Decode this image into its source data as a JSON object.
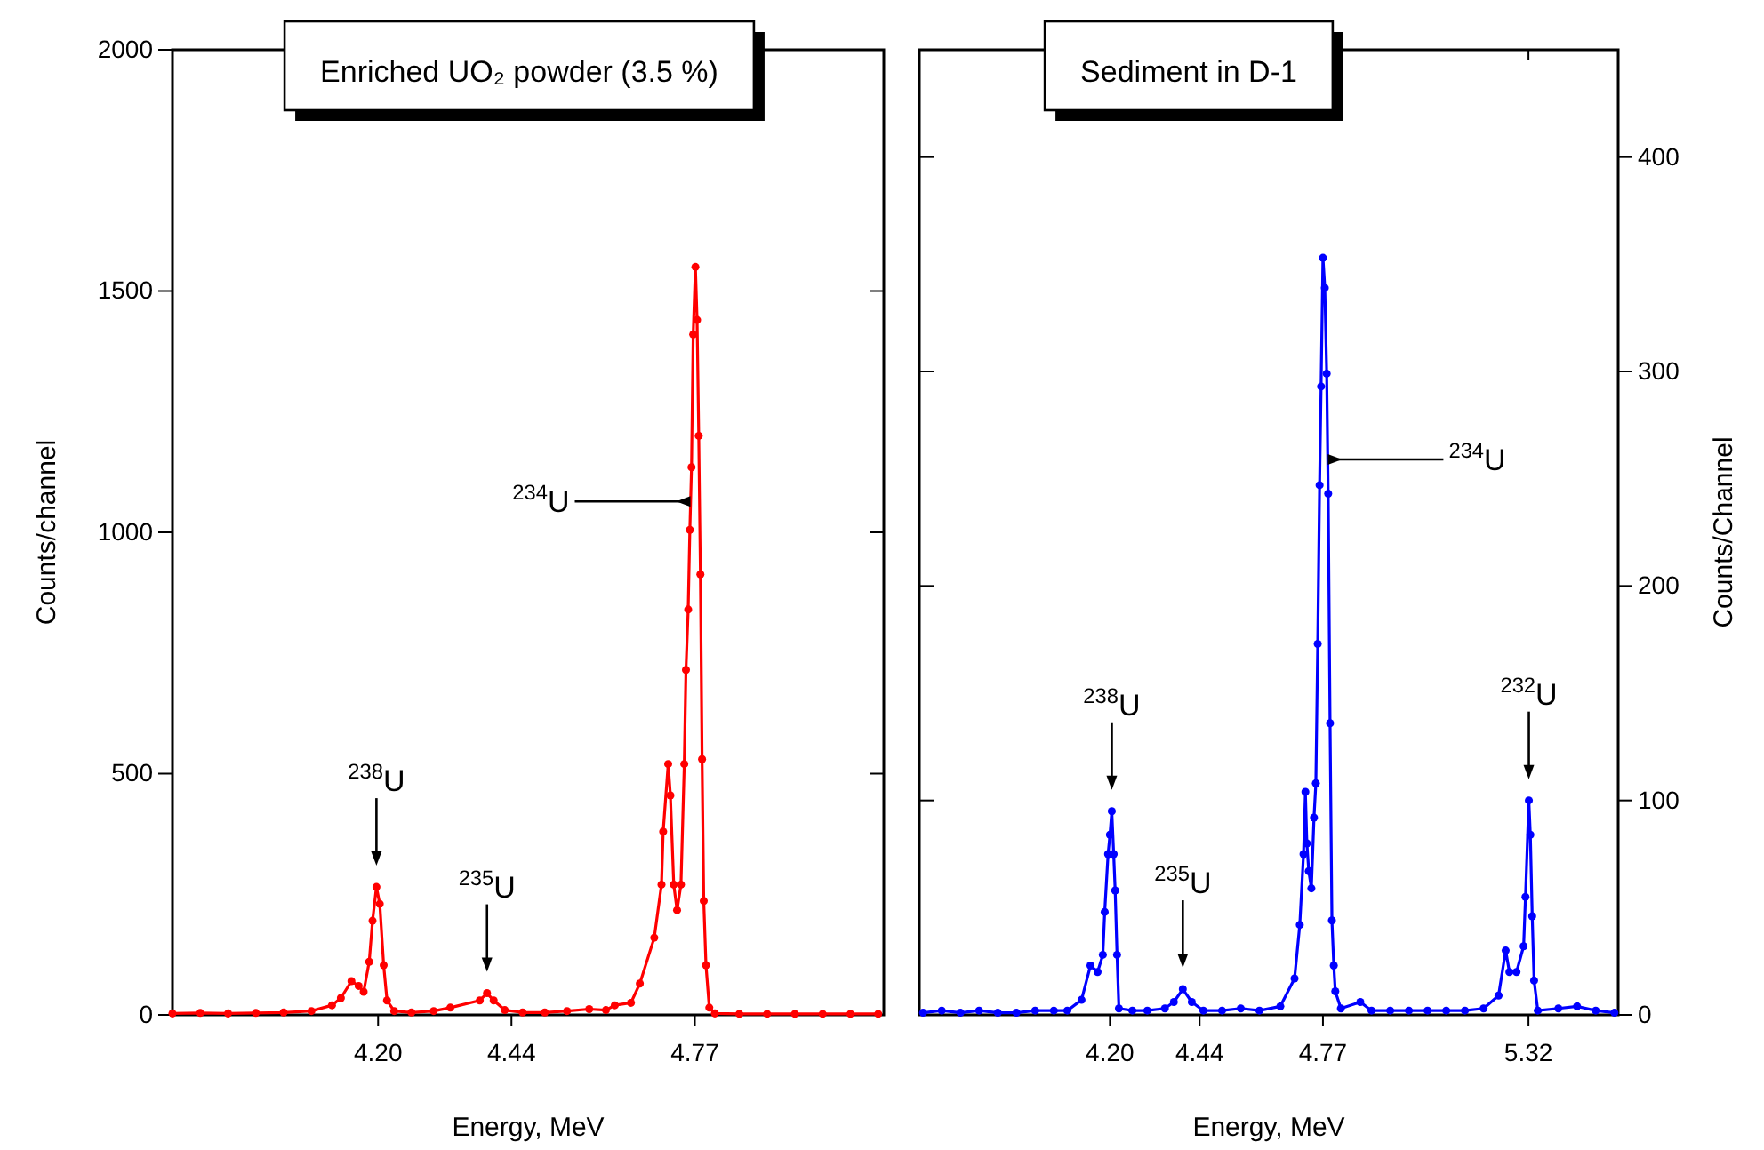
{
  "chart_data": [
    {
      "type": "line",
      "title": "Enriched UO₂ powder (3.5 %)",
      "xlabel": "Energy, MeV",
      "ylabel": "Counts/channel",
      "marker": "circle",
      "line_style": "solid",
      "grid": false,
      "xlim": [
        3.83,
        5.11
      ],
      "xticks": [
        {
          "value": 4.2,
          "label": "4.20"
        },
        {
          "value": 4.44,
          "label": "4.44"
        },
        {
          "value": 4.77,
          "label": "4.77"
        }
      ],
      "ylim": [
        0,
        2000
      ],
      "yticks": [
        0,
        500,
        1000,
        1500,
        2000
      ],
      "series": [
        {
          "color": "#ff0000",
          "x": [
            3.83,
            3.88,
            3.93,
            3.98,
            4.03,
            4.08,
            4.117,
            4.133,
            4.152,
            4.165,
            4.174,
            4.184,
            4.19,
            4.197,
            4.203,
            4.21,
            4.216,
            4.229,
            4.26,
            4.3,
            4.33,
            4.383,
            4.396,
            4.408,
            4.428,
            4.46,
            4.5,
            4.54,
            4.58,
            4.61,
            4.626,
            4.655,
            4.671,
            4.697,
            4.71,
            4.713,
            4.722,
            4.726,
            4.732,
            4.738,
            4.745,
            4.751,
            4.754,
            4.758,
            4.761,
            4.764,
            4.767,
            4.771,
            4.774,
            4.777,
            4.78,
            4.783,
            4.786,
            4.79,
            4.796,
            4.806,
            4.85,
            4.9,
            4.95,
            5.0,
            5.05,
            5.1
          ],
          "values": [
            3,
            4,
            3,
            4,
            5,
            8,
            20,
            35,
            70,
            60,
            48,
            110,
            195,
            265,
            230,
            103,
            30,
            8,
            5,
            8,
            15,
            30,
            45,
            30,
            10,
            5,
            5,
            8,
            12,
            10,
            20,
            25,
            65,
            160,
            270,
            380,
            520,
            455,
            270,
            217,
            270,
            520,
            715,
            840,
            1005,
            1135,
            1410,
            1550,
            1440,
            1200,
            913,
            530,
            236,
            103,
            15,
            3,
            2,
            2,
            2,
            2,
            2,
            2
          ]
        }
      ],
      "annotations": [
        {
          "text": "$^{238}$U",
          "x": 4.197,
          "y": 265
        },
        {
          "text": "$^{235}$U",
          "x": 4.396,
          "y": 45
        },
        {
          "text": "$^{234}$U",
          "x": 4.762,
          "y": 1064
        }
      ]
    },
    {
      "type": "line",
      "title": "Sediment in D-1",
      "xlabel": "Energy, MeV",
      "ylabel": "Counts/Channel",
      "marker": "circle",
      "line_style": "solid",
      "grid": false,
      "xlim": [
        3.69,
        5.56
      ],
      "xticks": [
        {
          "value": 4.2,
          "label": "4.20"
        },
        {
          "value": 4.44,
          "label": "4.44"
        },
        {
          "value": 4.77,
          "label": "4.77"
        },
        {
          "value": 5.32,
          "label": "5.32"
        }
      ],
      "ylim": [
        0,
        450
      ],
      "yticks": [
        0,
        100,
        200,
        300,
        400
      ],
      "series": [
        {
          "color": "#0000ff",
          "x": [
            3.7,
            3.75,
            3.8,
            3.85,
            3.9,
            3.95,
            4.0,
            4.05,
            4.086,
            4.124,
            4.148,
            4.167,
            4.181,
            4.186,
            4.195,
            4.2,
            4.205,
            4.21,
            4.214,
            4.219,
            4.224,
            4.26,
            4.3,
            4.347,
            4.371,
            4.395,
            4.419,
            4.45,
            4.5,
            4.55,
            4.6,
            4.656,
            4.694,
            4.708,
            4.718,
            4.723,
            4.727,
            4.732,
            4.739,
            4.746,
            4.751,
            4.756,
            4.761,
            4.765,
            4.77,
            4.775,
            4.78,
            4.784,
            4.789,
            4.794,
            4.799,
            4.803,
            4.818,
            4.87,
            4.9,
            4.95,
            5.0,
            5.05,
            5.1,
            5.15,
            5.2,
            5.24,
            5.259,
            5.269,
            5.288,
            5.307,
            5.312,
            5.321,
            5.325,
            5.33,
            5.335,
            5.345,
            5.4,
            5.45,
            5.5,
            5.55
          ],
          "values": [
            1,
            2,
            1,
            2,
            1,
            1,
            2,
            2,
            2,
            7,
            23,
            20,
            28,
            48,
            75,
            84,
            95,
            75,
            58,
            28,
            3,
            2,
            2,
            3,
            6,
            12,
            6,
            2,
            2,
            3,
            2,
            4,
            17,
            42,
            75,
            104,
            80,
            67,
            59,
            92,
            108,
            173,
            247,
            293,
            353,
            339,
            299,
            243,
            136,
            44,
            23,
            11,
            3,
            6,
            2,
            2,
            2,
            2,
            2,
            2,
            3,
            9,
            30,
            20,
            20,
            32,
            55,
            100,
            84,
            46,
            16,
            2,
            3,
            4,
            2,
            1
          ]
        }
      ],
      "annotations": [
        {
          "text": "$^{238}$U",
          "x": 4.205,
          "y": 95
        },
        {
          "text": "$^{235}$U",
          "x": 4.395,
          "y": 12
        },
        {
          "text": "$^{234}$U",
          "x": 4.783,
          "y": 259
        },
        {
          "text": "$^{232}$U",
          "x": 5.321,
          "y": 100
        }
      ]
    }
  ]
}
